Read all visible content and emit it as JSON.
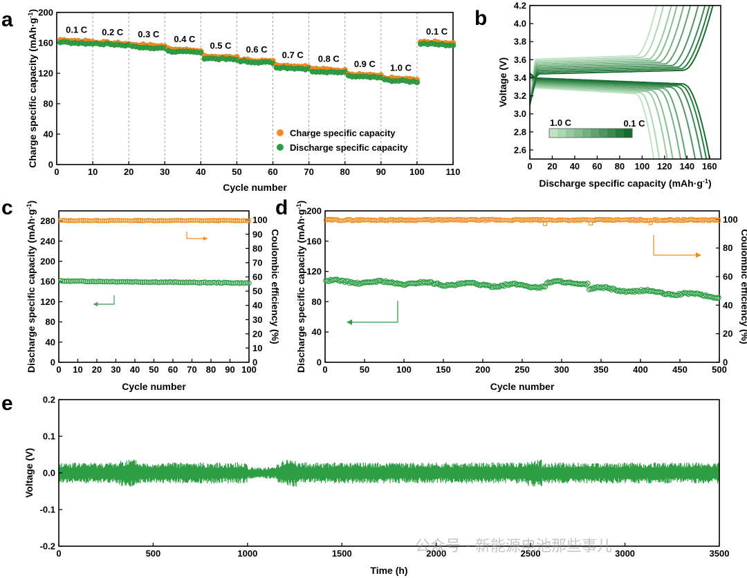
{
  "colors": {
    "charge": "#F28C1E",
    "discharge": "#2E9E45",
    "frame": "#000000",
    "dash": "#9a9a9a"
  },
  "chart_data": [
    {
      "panel": "a",
      "type": "scatter",
      "xlabel": "Cycle number",
      "ylabel": "Charge specific capacity (mAh·g⁻¹)",
      "xlim": [
        0,
        110
      ],
      "ylim": [
        0,
        200
      ],
      "xticks": [
        0,
        10,
        20,
        30,
        40,
        50,
        60,
        70,
        80,
        90,
        100,
        110
      ],
      "yticks": [
        0,
        40,
        80,
        120,
        160,
        200
      ],
      "legend": {
        "position": "bottom-right",
        "entries": [
          "Charge specific capacity",
          "Discharge specific capacity"
        ]
      },
      "rate_steps": [
        {
          "label": "0.1 C",
          "start": 1,
          "end": 10,
          "charge": 164,
          "discharge": 161
        },
        {
          "label": "0.2 C",
          "start": 11,
          "end": 20,
          "charge": 161,
          "discharge": 159
        },
        {
          "label": "0.3 C",
          "start": 21,
          "end": 30,
          "charge": 158,
          "discharge": 155
        },
        {
          "label": "0.4 C",
          "start": 31,
          "end": 40,
          "charge": 152,
          "discharge": 149
        },
        {
          "label": "0.5 C",
          "start": 41,
          "end": 50,
          "charge": 143,
          "discharge": 140
        },
        {
          "label": "0.6 C",
          "start": 51,
          "end": 60,
          "charge": 138,
          "discharge": 136
        },
        {
          "label": "0.7 C",
          "start": 61,
          "end": 70,
          "charge": 131,
          "discharge": 128
        },
        {
          "label": "0.8 C",
          "start": 71,
          "end": 80,
          "charge": 126,
          "discharge": 123
        },
        {
          "label": "0.9 C",
          "start": 81,
          "end": 90,
          "charge": 119,
          "discharge": 116
        },
        {
          "label": "1.0 C",
          "start": 91,
          "end": 100,
          "charge": 114,
          "discharge": 111
        },
        {
          "label": "0.1 C",
          "start": 101,
          "end": 110,
          "charge": 162,
          "discharge": 159
        }
      ]
    },
    {
      "panel": "b",
      "type": "line",
      "xlabel": "Discharge specific capacity (mAh·g⁻¹)",
      "ylabel": "Voltage (V)",
      "xlim": [
        0,
        170
      ],
      "ylim": [
        2.5,
        4.2
      ],
      "xticks": [
        0,
        20,
        40,
        60,
        80,
        100,
        120,
        140,
        160
      ],
      "yticks": [
        2.6,
        2.8,
        3.0,
        3.2,
        3.4,
        3.6,
        3.8,
        4.0,
        4.2
      ],
      "colorbar": {
        "low_label": "1.0 C",
        "high_label": "0.1 C"
      },
      "rates": [
        "0.1 C",
        "0.2 C",
        "0.3 C",
        "0.4 C",
        "0.5 C",
        "0.6 C",
        "0.7 C",
        "0.8 C",
        "0.9 C",
        "1.0 C"
      ],
      "charge_capacity_end": [
        163,
        160,
        156,
        150,
        143,
        137,
        131,
        126,
        119,
        113
      ],
      "discharge_capacity_end": [
        161,
        158,
        154,
        148,
        140,
        135,
        128,
        123,
        116,
        111
      ]
    },
    {
      "panel": "c",
      "type": "scatter",
      "xlabel": "Cycle number",
      "ylabel": "Discharge specific capacity (mAh·g⁻¹)",
      "y2label": "Coulombic efficiency (%)",
      "xlim": [
        0,
        100
      ],
      "ylim": [
        0,
        300
      ],
      "y2lim": [
        0,
        106.4
      ],
      "xticks": [
        0,
        10,
        20,
        30,
        40,
        50,
        60,
        70,
        80,
        90,
        100
      ],
      "yticks": [
        0,
        40,
        80,
        120,
        160,
        200,
        240,
        280
      ],
      "y2ticks": [
        0,
        10,
        20,
        30,
        40,
        50,
        60,
        70,
        80,
        90,
        100
      ],
      "series": [
        {
          "name": "Discharge specific capacity",
          "axis": "left",
          "start": 161,
          "end": 157
        },
        {
          "name": "Coulombic efficiency",
          "axis": "right",
          "start": 99.6,
          "end": 99.6
        }
      ]
    },
    {
      "panel": "d",
      "type": "scatter",
      "xlabel": "Cycle number",
      "ylabel": "Discharge specific capacity (mAh·g⁻¹)",
      "y2label": "Coulombic efficiency (%)",
      "xlim": [
        0,
        500
      ],
      "ylim": [
        0,
        200
      ],
      "y2lim": [
        0,
        106
      ],
      "xticks": [
        0,
        50,
        100,
        150,
        200,
        250,
        300,
        350,
        400,
        450,
        500
      ],
      "yticks": [
        0,
        40,
        80,
        120,
        160,
        200
      ],
      "y2ticks": [
        0,
        20,
        40,
        60,
        80,
        100
      ],
      "series": [
        {
          "name": "Discharge specific capacity",
          "axis": "left",
          "start": 107,
          "end": 87
        },
        {
          "name": "Coulombic efficiency",
          "axis": "right",
          "start": 100,
          "end": 99.5
        }
      ]
    },
    {
      "panel": "e",
      "type": "line",
      "xlabel": "Time (h)",
      "ylabel": "Voltage (V)",
      "xlim": [
        0,
        3500
      ],
      "ylim": [
        -0.2,
        0.2
      ],
      "xticks": [
        0,
        500,
        1000,
        1500,
        2000,
        2500,
        3000,
        3500
      ],
      "yticks": [
        -0.2,
        -0.1,
        0.0,
        0.1,
        0.2
      ],
      "amplitude_V": 0.025
    }
  ],
  "panel_labels": {
    "a": "a",
    "b": "b",
    "c": "c",
    "d": "d",
    "e": "e"
  },
  "watermark": "公众号 · 新能源电池那些事儿"
}
